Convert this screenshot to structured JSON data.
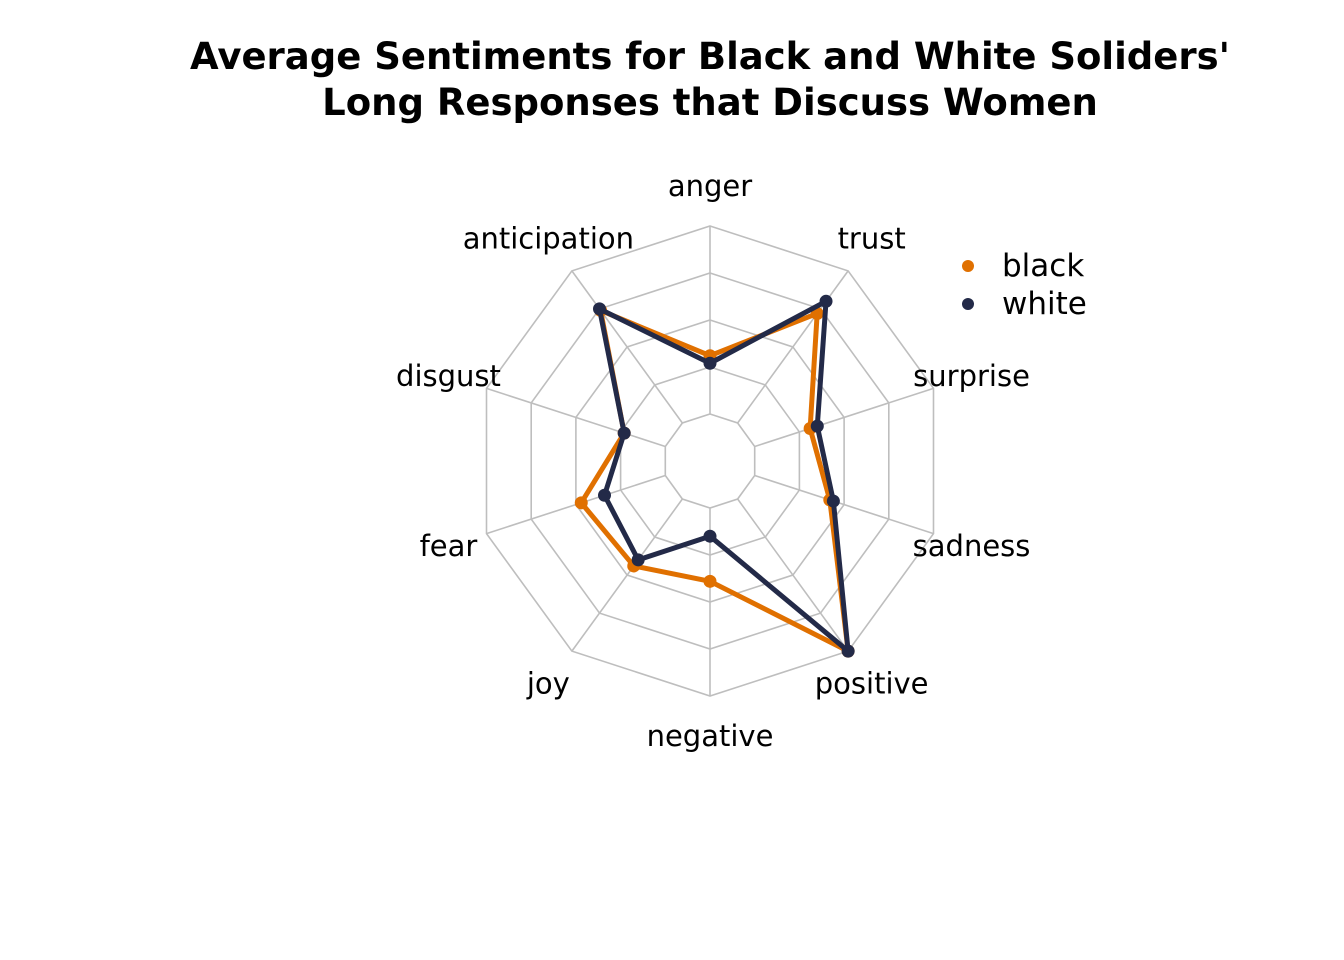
{
  "chart_data": {
    "type": "radar",
    "title_lines": [
      "Average Sentiments for Black and White Soliders'",
      "Long Responses that Discuss Women"
    ],
    "categories": [
      "anger",
      "trust",
      "surprise",
      "sadness",
      "positive",
      "negative",
      "joy",
      "fear",
      "disgust",
      "anticipation"
    ],
    "grid_levels": 5,
    "grid": true,
    "range": [
      0,
      1
    ],
    "legend_position": "top-right",
    "series": [
      {
        "name": "black",
        "color": "#E07000",
        "values": [
          0.31,
          0.72,
          0.31,
          0.42,
          1.0,
          0.39,
          0.44,
          0.47,
          0.23,
          0.74
        ]
      },
      {
        "name": "white",
        "color": "#232A48",
        "values": [
          0.27,
          0.8,
          0.35,
          0.44,
          1.0,
          0.15,
          0.4,
          0.34,
          0.23,
          0.75
        ]
      }
    ],
    "grid_color": "#BEBEBE"
  }
}
